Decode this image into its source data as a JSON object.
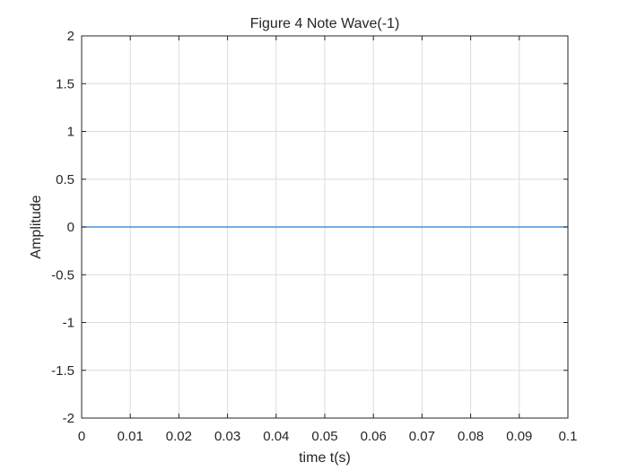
{
  "chart_data": {
    "type": "line",
    "title": "Figure 4 Note Wave(-1)",
    "xlabel": "time t(s)",
    "ylabel": "Amplitude",
    "xlim": [
      0,
      0.1
    ],
    "ylim": [
      -2,
      2
    ],
    "xticks": [
      0,
      0.01,
      0.02,
      0.03,
      0.04,
      0.05,
      0.06,
      0.07,
      0.08,
      0.09,
      0.1
    ],
    "xtick_labels": [
      "0",
      "0.01",
      "0.02",
      "0.03",
      "0.04",
      "0.05",
      "0.06",
      "0.07",
      "0.08",
      "0.09",
      "0.1"
    ],
    "yticks": [
      2,
      1.5,
      1,
      0.5,
      0,
      -0.5,
      -1,
      -1.5,
      -2
    ],
    "ytick_labels": [
      "2",
      "1.5",
      "1",
      "0.5",
      "0",
      "-0.5",
      "-1",
      "-1.5",
      "-2"
    ],
    "grid": true,
    "series": [
      {
        "x": [
          0,
          0.1
        ],
        "y": [
          0,
          0
        ],
        "color": "#4a90d9"
      }
    ]
  },
  "colors": {
    "axis": "#262626",
    "grid": "#dcdcdc",
    "background": "#ffffff"
  }
}
